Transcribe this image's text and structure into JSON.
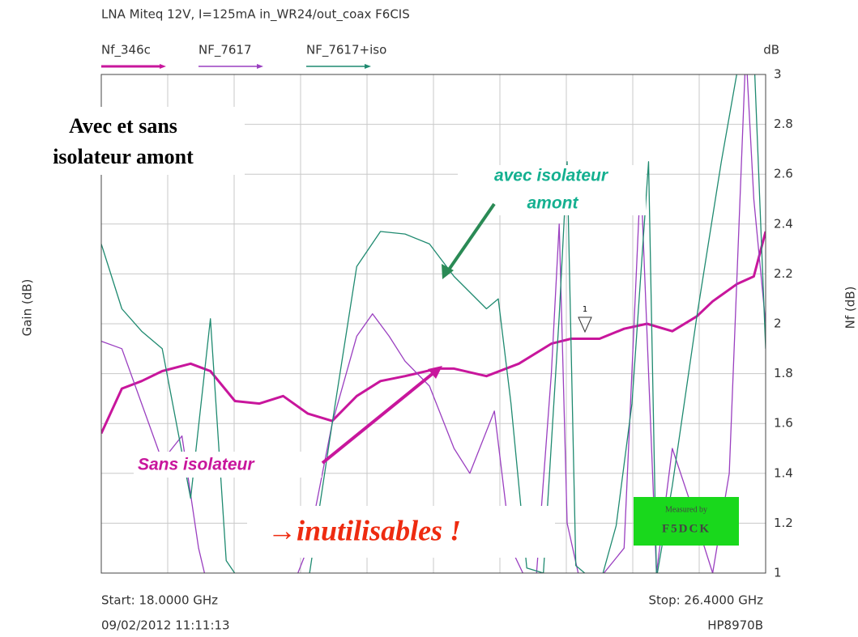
{
  "chart_data": {
    "type": "line",
    "title": "LNA Miteq 12V, I=125mA in_WR24/out_coax  F6CIS",
    "y_unit": "dB",
    "y_left_label": "Gain (dB)",
    "y_right_label": "Nf (dB)",
    "start_label": "Start: 18.0000 GHz",
    "stop_label": "Stop: 26.4000 GHz",
    "date_label": "09/02/2012 11:11:13",
    "instrument_label": "HP8970B",
    "xlim": [
      18,
      26.4
    ],
    "ylim": [
      1,
      3
    ],
    "yticks": [
      1,
      1.2,
      1.4,
      1.6,
      1.8,
      2,
      2.2,
      2.4,
      2.6,
      2.8,
      3
    ],
    "grid": true,
    "marker_label": "1",
    "annotations": {
      "box_lines": [
        "Avec et sans",
        "isolateur amont"
      ],
      "iso_lines": [
        "avec isolateur",
        "amont"
      ],
      "sans": "Sans  isolateur",
      "unusable": "→inutilisables !",
      "stamp": [
        "Measured by",
        "F5DCK"
      ]
    },
    "series": [
      {
        "name": "Nf_346c",
        "color": "#c8169c",
        "width": 3,
        "x": [
          18.0,
          18.26,
          18.51,
          18.77,
          19.13,
          19.38,
          19.69,
          20.0,
          20.3,
          20.61,
          20.92,
          21.23,
          21.53,
          21.84,
          22.25,
          22.46,
          22.87,
          23.28,
          23.69,
          23.94,
          24.3,
          24.61,
          24.9,
          25.22,
          25.53,
          25.73,
          26.04,
          26.25,
          26.4
        ],
        "values": [
          1.56,
          1.74,
          1.77,
          1.81,
          1.84,
          1.81,
          1.69,
          1.68,
          1.71,
          1.64,
          1.61,
          1.71,
          1.77,
          1.79,
          1.82,
          1.82,
          1.79,
          1.84,
          1.92,
          1.94,
          1.94,
          1.98,
          2.0,
          1.97,
          2.03,
          2.09,
          2.16,
          2.19,
          2.37
        ]
      },
      {
        "name": "NF_7617",
        "color": "#9a3fc0",
        "width": 1.3,
        "x": [
          18.0,
          18.26,
          18.51,
          18.77,
          19.02,
          19.23,
          19.38,
          19.79,
          20.3,
          20.61,
          20.92,
          21.23,
          21.43,
          21.64,
          21.84,
          22.15,
          22.46,
          22.66,
          22.97,
          23.18,
          23.48,
          23.69,
          23.79,
          23.89,
          24.1,
          24.61,
          24.82,
          25.02,
          25.22,
          25.43,
          25.73,
          25.94,
          26.15,
          26.25,
          26.4
        ],
        "values": [
          1.93,
          1.9,
          1.68,
          1.45,
          1.55,
          1.1,
          0.9,
          0.9,
          0.85,
          1.1,
          1.6,
          1.95,
          2.04,
          1.95,
          1.85,
          1.75,
          1.5,
          1.4,
          1.65,
          1.1,
          0.9,
          1.8,
          2.4,
          1.2,
          0.9,
          1.1,
          2.6,
          1.0,
          1.5,
          1.3,
          1.0,
          1.4,
          3.1,
          2.5,
          2.0
        ]
      },
      {
        "name": "NF_7617+iso",
        "color": "#1f8a70",
        "width": 1.3,
        "x": [
          18.0,
          18.26,
          18.51,
          18.77,
          19.13,
          19.38,
          19.58,
          19.9,
          20.61,
          20.92,
          21.23,
          21.53,
          21.84,
          22.15,
          22.46,
          22.87,
          23.02,
          23.18,
          23.38,
          23.59,
          23.79,
          23.89,
          24.0,
          24.3,
          24.51,
          24.71,
          24.92,
          25.02,
          25.22,
          25.53,
          25.84,
          26.09,
          26.25,
          26.4
        ],
        "values": [
          2.32,
          2.06,
          1.97,
          1.9,
          1.3,
          2.02,
          1.05,
          0.9,
          0.95,
          1.6,
          2.23,
          2.37,
          2.36,
          2.32,
          2.19,
          2.06,
          2.1,
          1.68,
          1.02,
          1.0,
          2.03,
          2.65,
          1.03,
          0.95,
          1.19,
          1.68,
          2.65,
          0.98,
          1.35,
          2.03,
          2.65,
          3.1,
          3.1,
          1.9
        ]
      }
    ]
  }
}
